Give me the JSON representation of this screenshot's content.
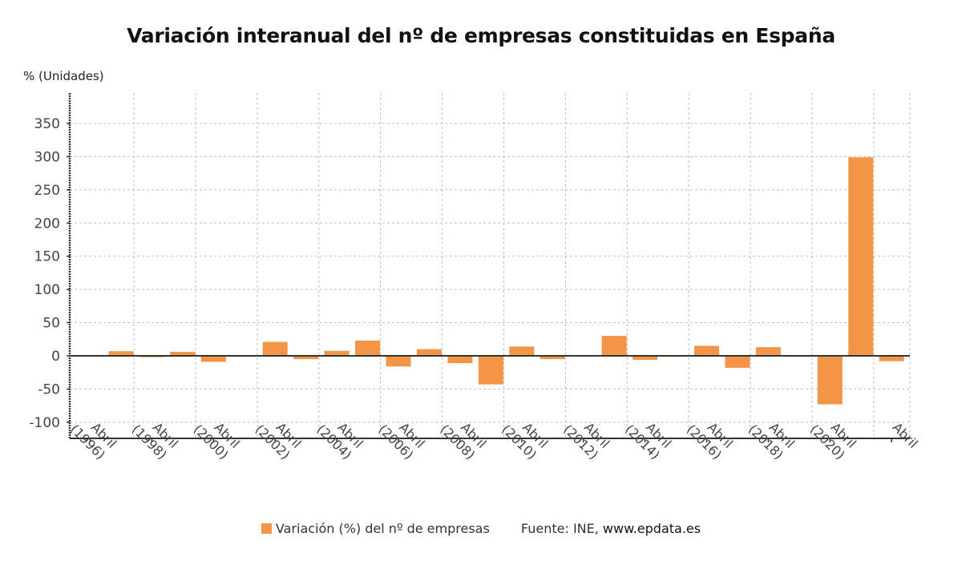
{
  "chart_data": {
    "type": "bar",
    "title": "Variación interanual del nº de empresas constituidas en España",
    "ylabel": "% (Unidades)",
    "xlabel": "",
    "categories": [
      "1996",
      "1997",
      "1998",
      "1999",
      "2000",
      "2001",
      "2002",
      "2003",
      "2004",
      "2005",
      "2006",
      "2007",
      "2008",
      "2009",
      "2010",
      "2011",
      "2012",
      "2013",
      "2014",
      "2015",
      "2016",
      "2017",
      "2018",
      "2019",
      "2020",
      "2021",
      "2022"
    ],
    "x_tick_labels": [
      {
        "category": "1996",
        "line1": "Abril",
        "line2": "(1996)"
      },
      {
        "category": "1998",
        "line1": "Abril",
        "line2": "(1998)"
      },
      {
        "category": "2000",
        "line1": "Abril",
        "line2": "(2000)"
      },
      {
        "category": "2002",
        "line1": "Abril",
        "line2": "(2002)"
      },
      {
        "category": "2004",
        "line1": "Abril",
        "line2": "(2004)"
      },
      {
        "category": "2006",
        "line1": "Abril",
        "line2": "(2006)"
      },
      {
        "category": "2008",
        "line1": "Abril",
        "line2": "(2008)"
      },
      {
        "category": "2010",
        "line1": "Abril",
        "line2": "(2010)"
      },
      {
        "category": "2012",
        "line1": "Abril",
        "line2": "(2012)"
      },
      {
        "category": "2014",
        "line1": "Abril",
        "line2": "(2014)"
      },
      {
        "category": "2016",
        "line1": "Abril",
        "line2": "(2016)"
      },
      {
        "category": "2018",
        "line1": "Abril",
        "line2": "(2018)"
      },
      {
        "category": "2020",
        "line1": "Abril",
        "line2": "(2020)"
      },
      {
        "category": "2022",
        "line1": "Abril",
        "line2": ""
      }
    ],
    "series": [
      {
        "name": "Variación (%) del nº de empresas",
        "color": "#f39446",
        "values": [
          1,
          7,
          -2,
          6,
          -9,
          0,
          21,
          -5,
          7.5,
          23,
          -16,
          10,
          -11,
          -43,
          14,
          -5,
          0.5,
          30,
          -6,
          -1,
          15,
          -18,
          13,
          -1,
          -73,
          299,
          -8
        ]
      }
    ],
    "ylim": [
      -120,
      390
    ],
    "yticks": [
      -100,
      -50,
      0,
      50,
      100,
      150,
      200,
      250,
      300,
      350
    ],
    "grid": true,
    "legend_position": "bottom-center"
  },
  "legend": {
    "series_label": "Variación (%) del nº de empresas",
    "source_prefix": "Fuente: INE, ",
    "source_url": "www.epdata.es"
  }
}
